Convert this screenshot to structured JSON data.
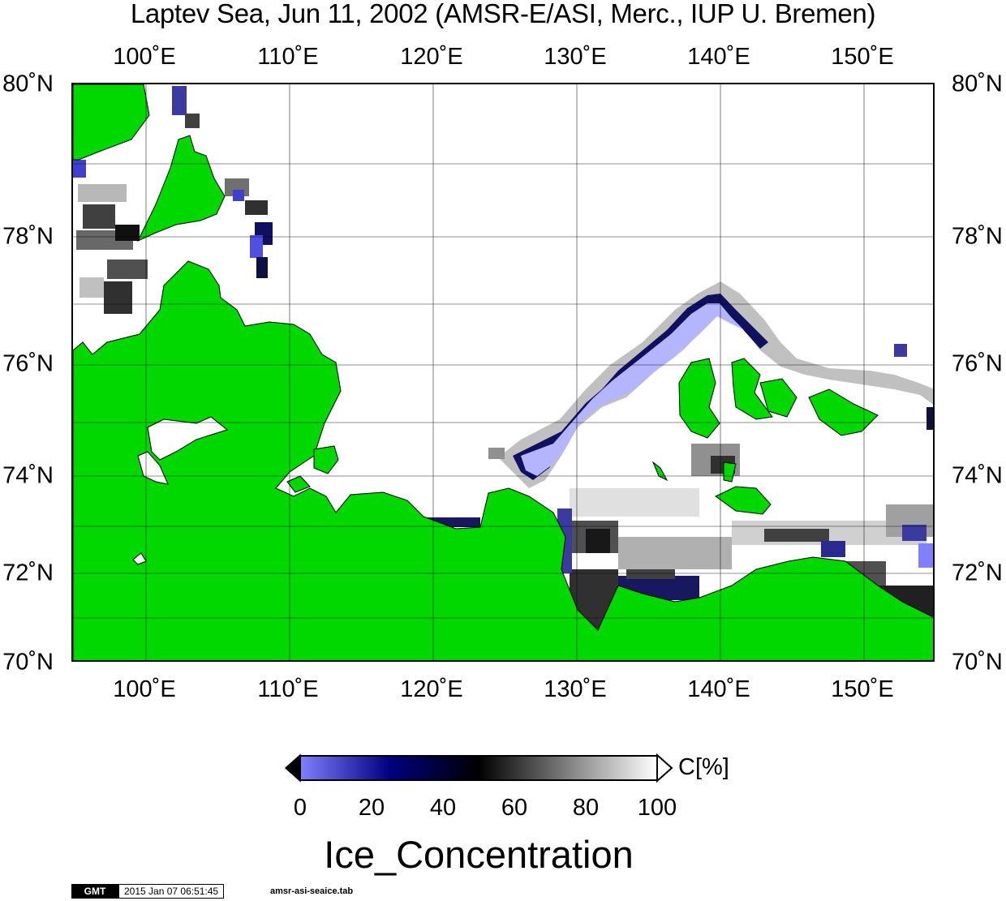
{
  "title": "Laptev Sea, Jun 11, 2002 (AMSR-E/ASI, Merc., IUP U. Bremen)",
  "map": {
    "lon_range": [
      95,
      155
    ],
    "lat_range": [
      70,
      80
    ],
    "projection": "Mercator",
    "longitude_labels": [
      "100˚E",
      "110˚E",
      "120˚E",
      "130˚E",
      "140˚E",
      "150˚E"
    ],
    "latitude_labels": [
      "80˚N",
      "78˚N",
      "76˚N",
      "74˚N",
      "72˚N",
      "70˚N"
    ],
    "land_color": "#00d800",
    "water_color": "#ffffff",
    "grid": true
  },
  "colorbar": {
    "tick_labels": [
      "0",
      "20",
      "40",
      "60",
      "80",
      "100"
    ],
    "unit": "C[%]",
    "title": "Ice_Concentration",
    "colors": [
      "#8080ff",
      "#000080",
      "#000000",
      "#808080",
      "#ffffff"
    ],
    "range": [
      0,
      100
    ]
  },
  "footer": {
    "logo": "GMT",
    "timestamp": "2015 Jan 07 06:51:45",
    "filename": "amsr-asi-seaice.tab"
  }
}
